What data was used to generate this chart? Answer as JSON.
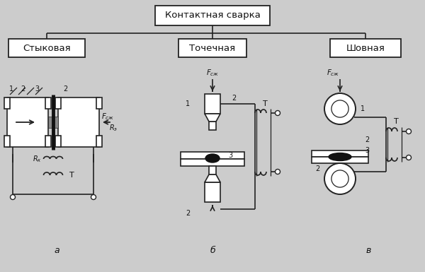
{
  "title": "Контактная сварка",
  "subtitle_left": "Стыковая",
  "subtitle_mid": "Точечная",
  "subtitle_right": "Шовная",
  "label_a": "а",
  "label_b": "б",
  "label_v": "в",
  "bg_color": "#cccccc",
  "box_color": "#ffffff",
  "line_color": "#222222",
  "text_color": "#111111",
  "fig_width": 6.0,
  "fig_height": 3.85
}
